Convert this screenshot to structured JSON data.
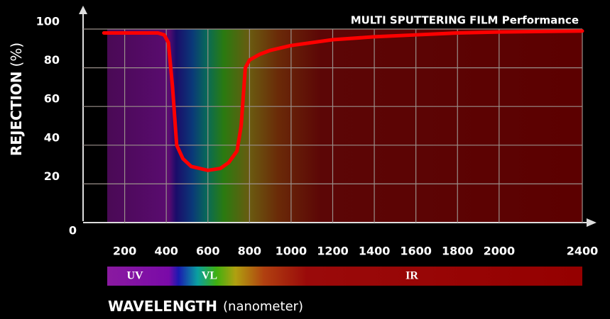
{
  "chart_data": {
    "type": "line",
    "title": "MULTI SPUTTERING FILM Performance",
    "ylabel": "REJECTION",
    "ylabel_unit": "(%)",
    "xlabel": "WAVELENGTH",
    "xlabel_unit": "(nanometer)",
    "bands": [
      "UV",
      "VL",
      "IR"
    ],
    "x": [
      100,
      200,
      300,
      360,
      390,
      410,
      430,
      450,
      480,
      520,
      600,
      660,
      700,
      740,
      760,
      780,
      800,
      850,
      900,
      1000,
      1200,
      1400,
      1600,
      1800,
      2000,
      2400
    ],
    "values": [
      98,
      98,
      98,
      98,
      97,
      93,
      70,
      40,
      33,
      29,
      27,
      28,
      31,
      37,
      50,
      80,
      84,
      87,
      89,
      91.5,
      94.5,
      96,
      97,
      98,
      98.5,
      99
    ],
    "color": "#ff0000",
    "xlim": [
      0,
      2400
    ],
    "xticks": [
      200,
      400,
      600,
      800,
      1000,
      1200,
      1400,
      1600,
      1800,
      2000,
      2400
    ],
    "ylim": [
      0,
      100
    ],
    "yticks": [
      0,
      20,
      40,
      60,
      80,
      100
    ],
    "grid": true
  }
}
